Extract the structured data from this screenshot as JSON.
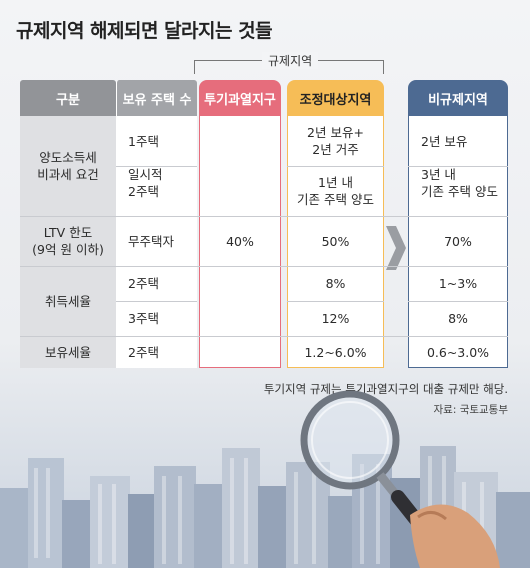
{
  "title": "규제지역 해제되면 달라지는 것들",
  "bracket_label": "규제지역",
  "headers": {
    "gubun": "구분",
    "house_count": "보유 주택 수",
    "speculative": "투기과열지구",
    "adjusted": "조정대상지역",
    "non_regulated": "비규제지역"
  },
  "rows": {
    "capital_gains": {
      "label_line1": "양도소득세",
      "label_line2": "비과세 요건",
      "r1": {
        "house": "1주택",
        "adj_line1": "2년 보유+",
        "adj_line2": "2년 거주",
        "non": "2년 보유"
      },
      "r2": {
        "house_line1": "일시적",
        "house_line2": "2주택",
        "adj_line1": "1년 내",
        "adj_line2": "기존 주택 양도",
        "non_line1": "3년 내",
        "non_line2": "기존 주택 양도"
      }
    },
    "ltv": {
      "label_line1": "LTV 한도",
      "label_line2": "(9억 원 이하)",
      "house": "무주택자",
      "spec": "40%",
      "adj": "50%",
      "non": "70%"
    },
    "acquisition_tax": {
      "label": "취득세율",
      "r1": {
        "house": "2주택",
        "adj": "8%",
        "non": "1~3%"
      },
      "r2": {
        "house": "3주택",
        "adj": "12%",
        "non": "8%"
      }
    },
    "holding_tax": {
      "label": "보유세율",
      "house": "2주택",
      "adj": "1.2~6.0%",
      "non": "0.6~3.0%"
    }
  },
  "note": "투기지역 규제는 투기과열지구의 대출 규제만 해당.",
  "source": "자료: 국토교통부",
  "colors": {
    "speculative": "#e66d7c",
    "adjusted": "#f6bd57",
    "non_regulated": "#4d6a92"
  },
  "icons": [
    "magnifying-glass-icon",
    "right-arrow-icon"
  ]
}
